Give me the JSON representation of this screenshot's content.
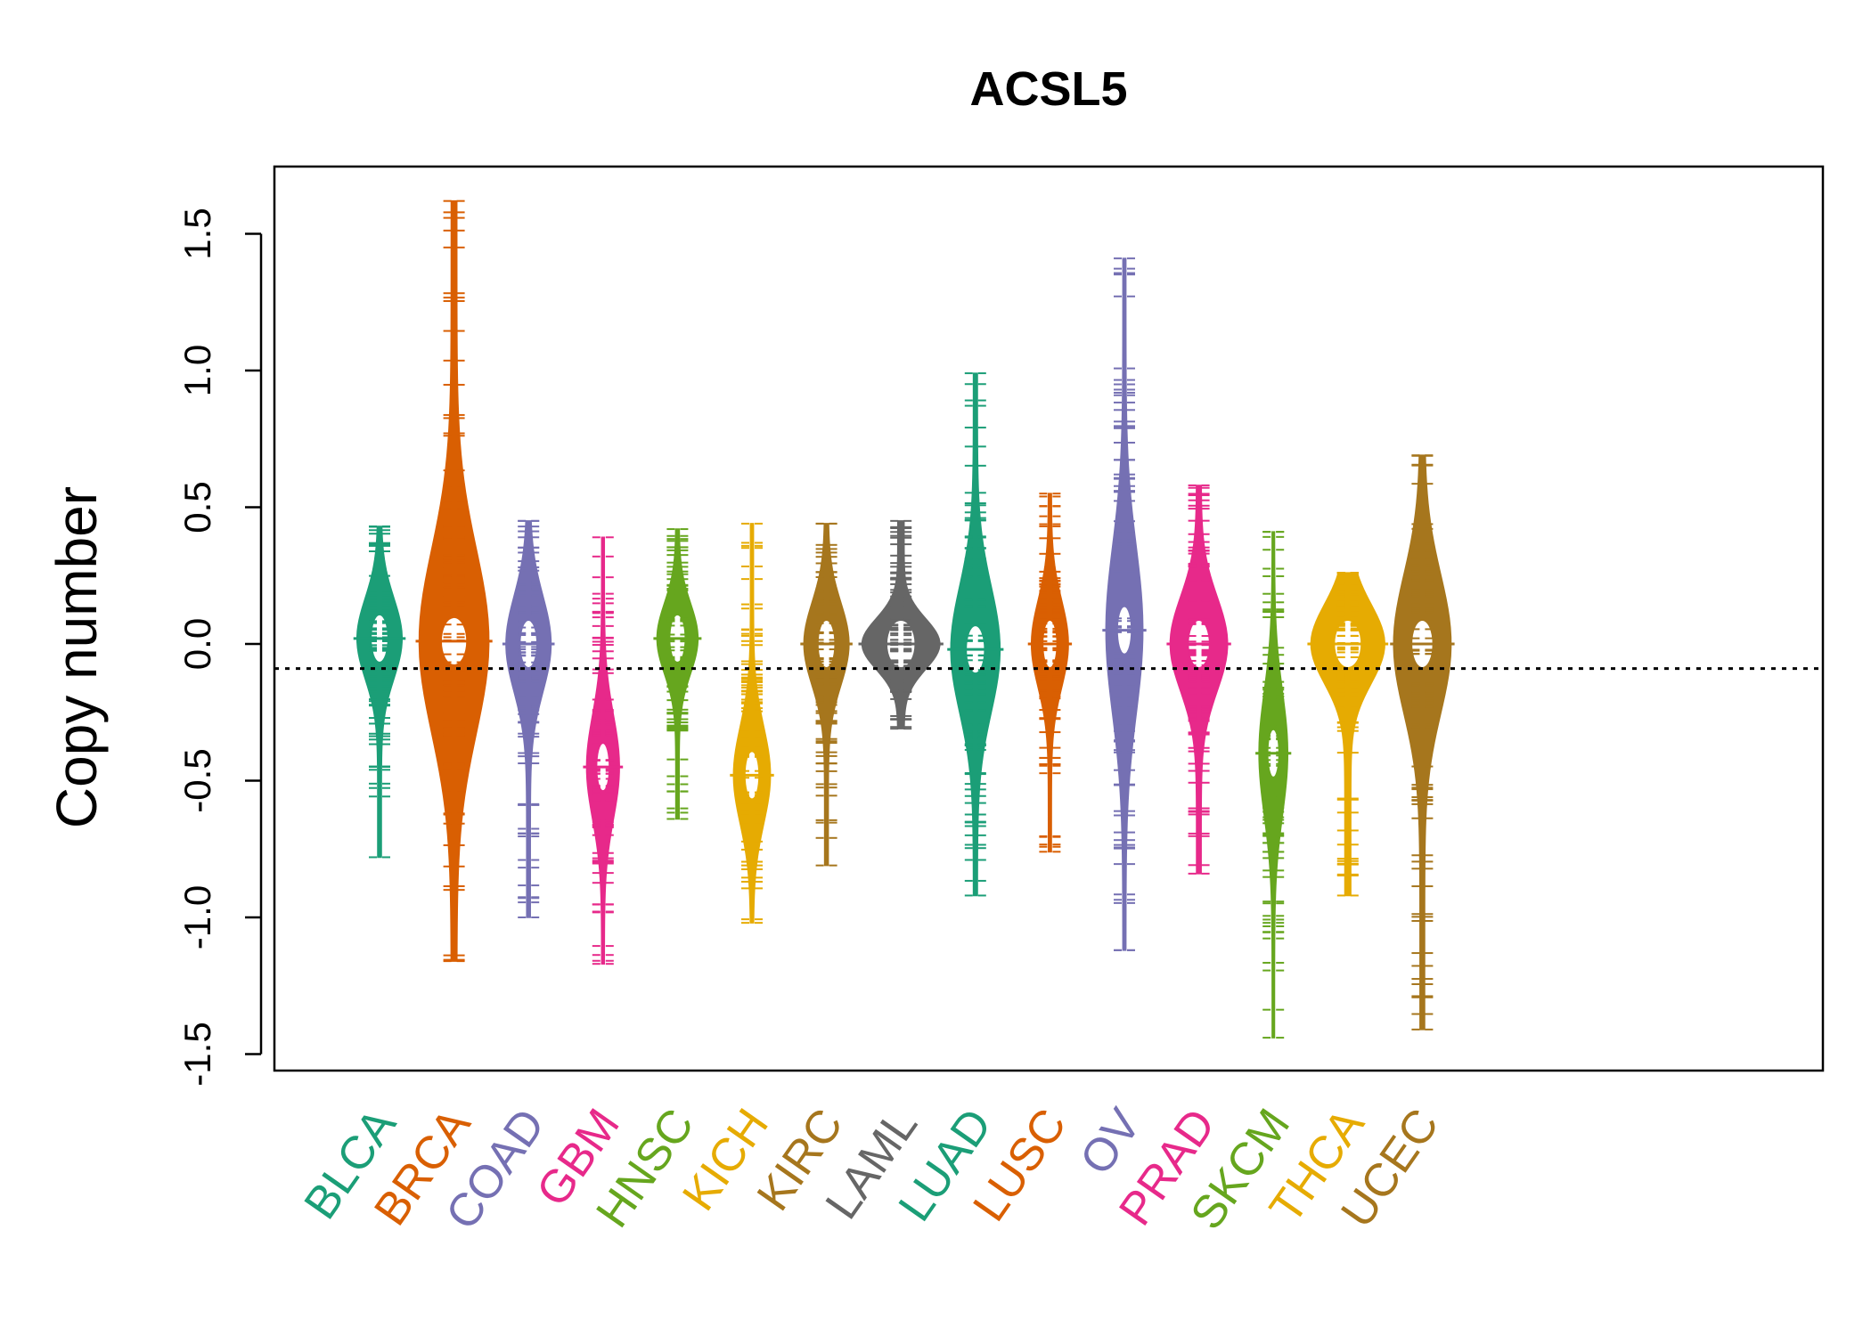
{
  "chart_data": {
    "type": "beanplot",
    "title": "ACSL5",
    "xlabel": "",
    "ylabel": "Copy number",
    "ylim": [
      -1.55,
      1.75
    ],
    "yticks": [
      -1.5,
      -1.0,
      -0.5,
      0.0,
      0.5,
      1.0,
      1.5
    ],
    "ytick_labels": [
      "-1.5",
      "-1.0",
      "-0.5",
      "0.0",
      "0.5",
      "1.0",
      "1.5"
    ],
    "reference_line": -0.09,
    "grid": false,
    "categories": [
      {
        "name": "BLCA",
        "color": "#1B9E77",
        "min": -0.78,
        "max": 0.43,
        "peak": 0.02,
        "width": 0.55
      },
      {
        "name": "BRCA",
        "color": "#D95F02",
        "min": -1.16,
        "max": 1.62,
        "peak": 0.01,
        "width": 0.85
      },
      {
        "name": "COAD",
        "color": "#7570B3",
        "min": -1.0,
        "max": 0.45,
        "peak": 0.0,
        "width": 0.55
      },
      {
        "name": "GBM",
        "color": "#E7298A",
        "min": -1.17,
        "max": 0.39,
        "peak": -0.45,
        "width": 0.4
      },
      {
        "name": "HNSC",
        "color": "#66A61E",
        "min": -0.64,
        "max": 0.42,
        "peak": 0.02,
        "width": 0.5
      },
      {
        "name": "KICH",
        "color": "#E6AB02",
        "min": -1.02,
        "max": 0.44,
        "peak": -0.48,
        "width": 0.45
      },
      {
        "name": "KIRC",
        "color": "#A6761D",
        "min": -0.81,
        "max": 0.44,
        "peak": 0.0,
        "width": 0.55
      },
      {
        "name": "LAML",
        "color": "#666666",
        "min": -0.31,
        "max": 0.45,
        "peak": 0.0,
        "width": 0.95
      },
      {
        "name": "LUAD",
        "color": "#1B9E77",
        "min": -0.92,
        "max": 0.99,
        "peak": -0.02,
        "width": 0.6
      },
      {
        "name": "LUSC",
        "color": "#D95F02",
        "min": -0.76,
        "max": 0.55,
        "peak": 0.0,
        "width": 0.45
      },
      {
        "name": "OV",
        "color": "#7570B3",
        "min": -1.12,
        "max": 1.41,
        "peak": 0.05,
        "width": 0.45
      },
      {
        "name": "PRAD",
        "color": "#E7298A",
        "min": -0.84,
        "max": 0.58,
        "peak": 0.0,
        "width": 0.7
      },
      {
        "name": "SKCM",
        "color": "#66A61E",
        "min": -1.44,
        "max": 0.41,
        "peak": -0.4,
        "width": 0.35
      },
      {
        "name": "THCA",
        "color": "#E6AB02",
        "min": -0.92,
        "max": 0.26,
        "peak": 0.0,
        "width": 0.9
      },
      {
        "name": "UCEC",
        "color": "#A6761D",
        "min": -1.41,
        "max": 0.69,
        "peak": 0.0,
        "width": 0.7
      }
    ]
  }
}
